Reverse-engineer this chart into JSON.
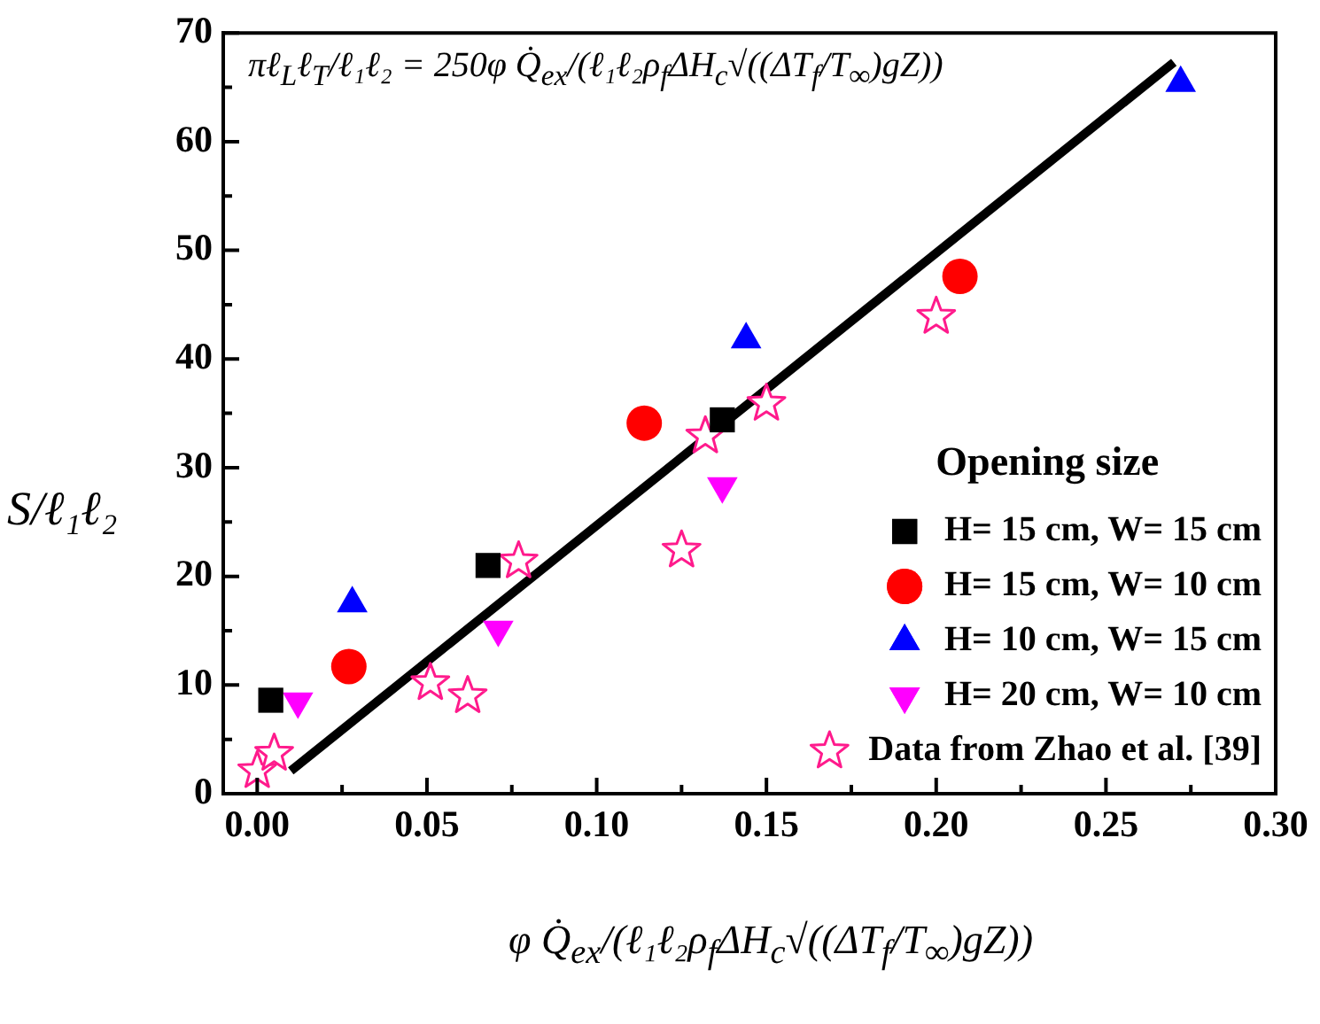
{
  "chart_data": {
    "type": "scatter",
    "xlabel": "φ Q̇$_{ex}$/(ℓ₁ℓ₂ρ$_{f}$ΔH$_{c}$√((ΔT$_{f}$/T$_{∞}$)gZ))",
    "ylabel": "S/ℓ₁ℓ₂",
    "legend_title": "Opening size",
    "annotations": [
      "πℓ$_{L}$ℓ$_{T}$/ℓ₁ℓ₂ = 250φ Q̇$_{ex}$/(ℓ₁ℓ₂ρ$_{f}$ΔH$_{c}$√((ΔT$_{f}$/T$_{∞}$)gZ))"
    ],
    "xlim": [
      -0.01,
      0.3
    ],
    "xticks": [
      {
        "value": 0,
        "label": "0.00"
      },
      {
        "value": 0.025,
        "label": null
      },
      {
        "value": 0.05,
        "label": "0.05"
      },
      {
        "value": 0.075,
        "label": null
      },
      {
        "value": 0.1,
        "label": "0.10"
      },
      {
        "value": 0.125,
        "label": null
      },
      {
        "value": 0.15,
        "label": "0.15"
      },
      {
        "value": 0.175,
        "label": null
      },
      {
        "value": 0.2,
        "label": "0.20"
      },
      {
        "value": 0.225,
        "label": null
      },
      {
        "value": 0.25,
        "label": "0.25"
      },
      {
        "value": 0.275,
        "label": null
      },
      {
        "value": 0.3,
        "label": "0.30"
      }
    ],
    "ylim": [
      0,
      70
    ],
    "yticks": [
      0,
      {
        "value": 5,
        "label": null
      },
      10,
      {
        "value": 15,
        "label": null
      },
      20,
      {
        "value": 25,
        "label": null
      },
      30,
      {
        "value": 35,
        "label": null
      },
      40,
      {
        "value": 45,
        "label": null
      },
      50,
      {
        "value": 55,
        "label": null
      },
      60,
      {
        "value": 65,
        "label": null
      },
      70
    ],
    "grid": false,
    "legend": "bottom right",
    "series": [
      {
        "name": "H= 15 cm, W= 15 cm",
        "color": "#000000",
        "marker": "square",
        "x": [
          0.004,
          0.068,
          0.137
        ],
        "values": [
          8.6,
          21.0,
          34.4
        ]
      },
      {
        "name": "H= 15 cm, W= 10 cm",
        "color": "#ff0000",
        "marker": "circle",
        "x": [
          0.027,
          0.114,
          0.207
        ],
        "values": [
          11.7,
          34.1,
          47.6
        ]
      },
      {
        "name": "H= 10 cm, W= 15 cm",
        "color": "#0000ff",
        "marker": "triangle",
        "x": [
          0.028,
          0.144,
          0.272
        ],
        "values": [
          17.5,
          41.8,
          65.4
        ]
      },
      {
        "name": "H= 20 cm, W= 10 cm",
        "color": "#ff00ff",
        "marker": "triangle-down",
        "x": [
          0.012,
          0.071,
          0.137
        ],
        "values": [
          8.5,
          15.1,
          28.3
        ]
      },
      {
        "name": "Data from Zhao et al. [39]",
        "color": "#ff1a8c",
        "marker": "star",
        "x": [
          0.0,
          0.005,
          0.051,
          0.062,
          0.077,
          0.125,
          0.132,
          0.15,
          0.2
        ],
        "values": [
          2.1,
          3.7,
          10.2,
          9.0,
          21.4,
          22.4,
          32.9,
          35.9,
          43.9
        ]
      },
      {
        "type": "line",
        "color": "#000000",
        "marker": "none",
        "line_style": "solid",
        "x": [
          0.0099,
          0.27
        ],
        "values": [
          2.1,
          67.3
        ]
      }
    ]
  }
}
